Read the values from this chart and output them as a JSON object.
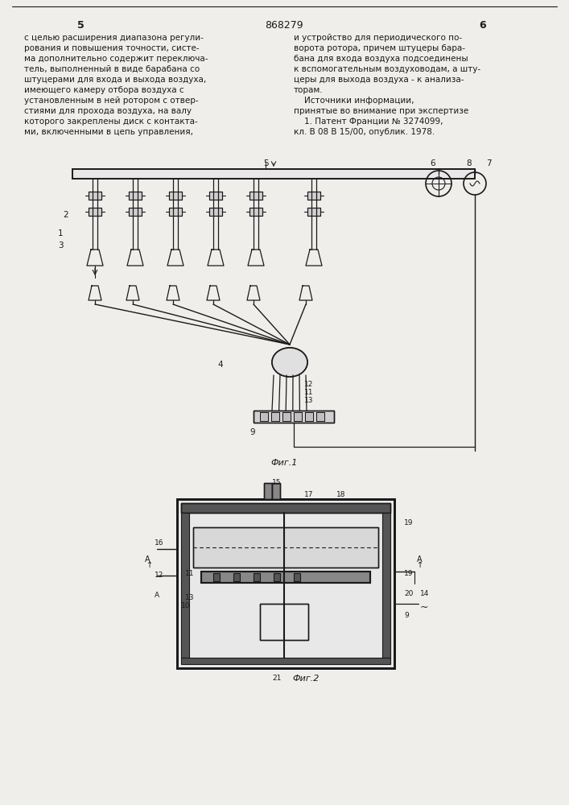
{
  "page_color": "#f0eeeb",
  "line_color": "#1a1a1a",
  "text_color": "#1a1a1a",
  "page_number_left": "5",
  "page_number_center": "868279",
  "page_number_right": "6",
  "left_col_text": [
    "с целью расширения диапазона регули-",
    "рования и повышения точности, систе-",
    "ма дополнительно содержит переключа-",
    "тель, выполненный в виде барабана со",
    "штуцерами для входа и выхода воздуха,",
    "имеющего камеру отбора воздуха с",
    "установленным в ней ротором с отвер-",
    "стиями для прохода воздуха, на валу",
    "которого закреплены диск с контакта-",
    "ми, включенными в цепь управления,"
  ],
  "right_col_text": [
    "и устройство для периодического по-",
    "ворота ротора, причем штуцеры бара-",
    "бана для входа воздуха подсоединены",
    "к вспомогательным воздуховодам, а шту-",
    "церы для выхода воздуха - к анализа-",
    "торам.",
    "    Источники информации,",
    "принятые во внимание при экспертизе",
    "    1. Патент Франции № 3274099,",
    "кл. В 08 В 15/00, опублик. 1978."
  ],
  "fig1_label": "Фиг.1",
  "fig2_label": "Фиг.2"
}
